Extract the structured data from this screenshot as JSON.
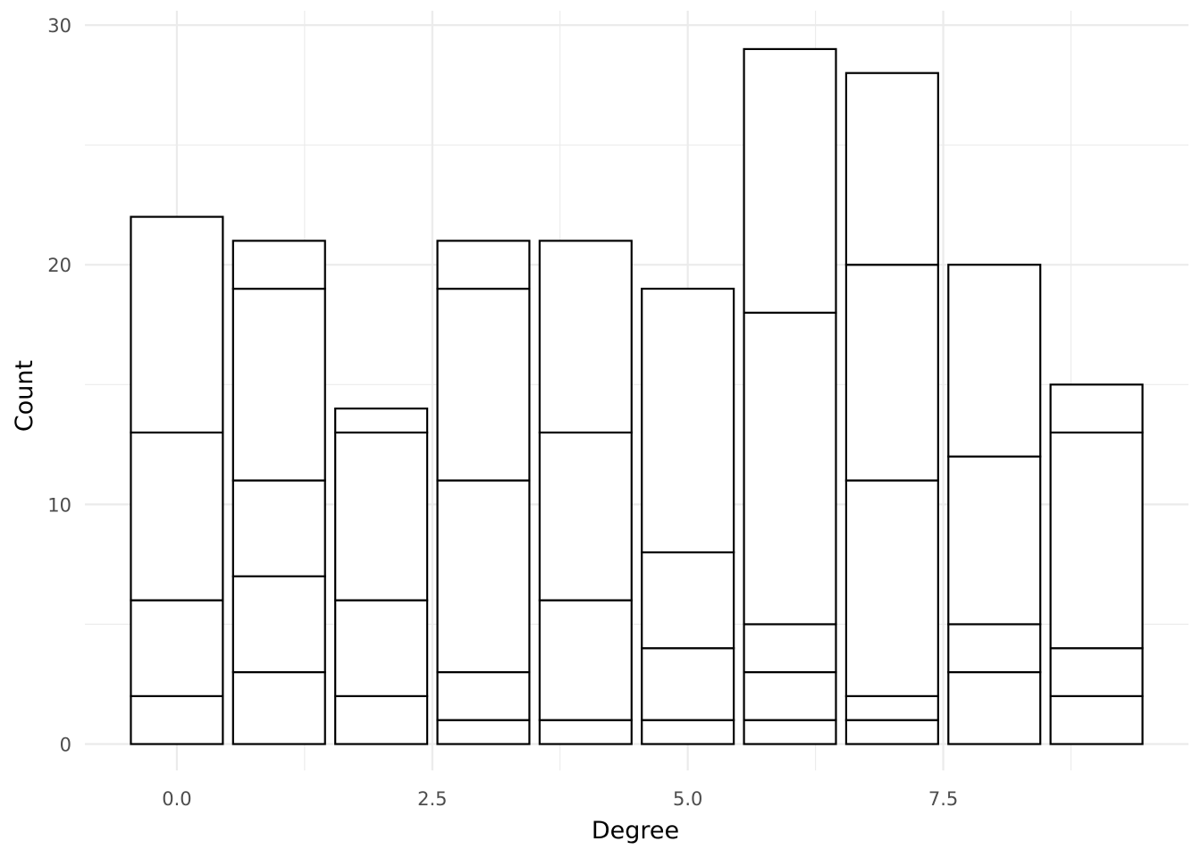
{
  "chart_data": {
    "type": "bar",
    "stacked": true,
    "title": "",
    "xlabel": "Degree",
    "ylabel": "Count",
    "xlim": [
      -0.9,
      9.9
    ],
    "ylim": [
      -1.1,
      30.6
    ],
    "x_ticks": [
      "0.0",
      "2.5",
      "5.0",
      "7.5"
    ],
    "x_tick_values": [
      0,
      2.5,
      5,
      7.5
    ],
    "x_minor_values": [
      1.25,
      3.75,
      6.25,
      8.75
    ],
    "y_ticks": [
      "0",
      "10",
      "20",
      "30"
    ],
    "y_tick_values": [
      0,
      10,
      20,
      30
    ],
    "y_minor_values": [
      5,
      15,
      25
    ],
    "grid": true,
    "legend": "none",
    "bar_fill": "#ffffff",
    "bar_stroke": "#000000",
    "grid_color": "#ebebeb",
    "bars": [
      {
        "x": 0,
        "cumulative": [
          2,
          6,
          13,
          22
        ]
      },
      {
        "x": 1,
        "cumulative": [
          3,
          7,
          11,
          19,
          21
        ]
      },
      {
        "x": 2,
        "cumulative": [
          2,
          6,
          13,
          14
        ]
      },
      {
        "x": 3,
        "cumulative": [
          1,
          3,
          11,
          19,
          21
        ]
      },
      {
        "x": 4,
        "cumulative": [
          1,
          6,
          13,
          21
        ]
      },
      {
        "x": 5,
        "cumulative": [
          1,
          4,
          8,
          19
        ]
      },
      {
        "x": 6,
        "cumulative": [
          1,
          3,
          5,
          18,
          29
        ]
      },
      {
        "x": 7,
        "cumulative": [
          1,
          2,
          11,
          20,
          28
        ]
      },
      {
        "x": 8,
        "cumulative": [
          3,
          5,
          12,
          20
        ]
      },
      {
        "x": 9,
        "cumulative": [
          2,
          4,
          13,
          15
        ]
      }
    ]
  }
}
